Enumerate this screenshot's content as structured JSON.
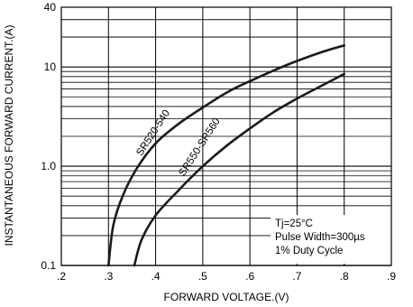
{
  "chart_data": {
    "type": "line",
    "xlabel": "FORWARD VOLTAGE.(V)",
    "ylabel": "INSTANTANEOUS FORWARD CURRENT.(A)",
    "xlim": [
      0.2,
      0.9
    ],
    "ylim": [
      0.1,
      40
    ],
    "y_scale": "log",
    "grid": true,
    "x_ticks": [
      {
        "value": 0.2,
        "label": ".2"
      },
      {
        "value": 0.3,
        "label": ".3"
      },
      {
        "value": 0.4,
        "label": ".4"
      },
      {
        "value": 0.5,
        "label": ".5"
      },
      {
        "value": 0.6,
        "label": ".6"
      },
      {
        "value": 0.7,
        "label": ".7"
      },
      {
        "value": 0.8,
        "label": ".8"
      },
      {
        "value": 0.9,
        "label": ".9"
      }
    ],
    "y_ticks": [
      {
        "value": 0.1,
        "label": "0.1"
      },
      {
        "value": 1.0,
        "label": "1.0"
      },
      {
        "value": 10,
        "label": "10"
      },
      {
        "value": 40,
        "label": "40"
      }
    ],
    "series": [
      {
        "name": "SR520-540",
        "x": [
          0.3,
          0.31,
          0.33,
          0.36,
          0.4,
          0.45,
          0.5,
          0.55,
          0.6,
          0.65,
          0.7,
          0.75,
          0.8
        ],
        "y": [
          0.1,
          0.25,
          0.5,
          0.95,
          1.7,
          2.7,
          3.9,
          5.5,
          7.2,
          9.2,
          11.5,
          14.0,
          16.5
        ]
      },
      {
        "name": "SR550-SR560",
        "x": [
          0.355,
          0.37,
          0.4,
          0.45,
          0.5,
          0.55,
          0.6,
          0.65,
          0.7,
          0.75,
          0.8
        ],
        "y": [
          0.1,
          0.18,
          0.32,
          0.58,
          1.0,
          1.6,
          2.4,
          3.5,
          4.8,
          6.4,
          8.5
        ]
      }
    ],
    "annotation_lines": [
      "Tj=25°C",
      "Pulse Width=300µs",
      "1% Duty Cycle"
    ]
  }
}
